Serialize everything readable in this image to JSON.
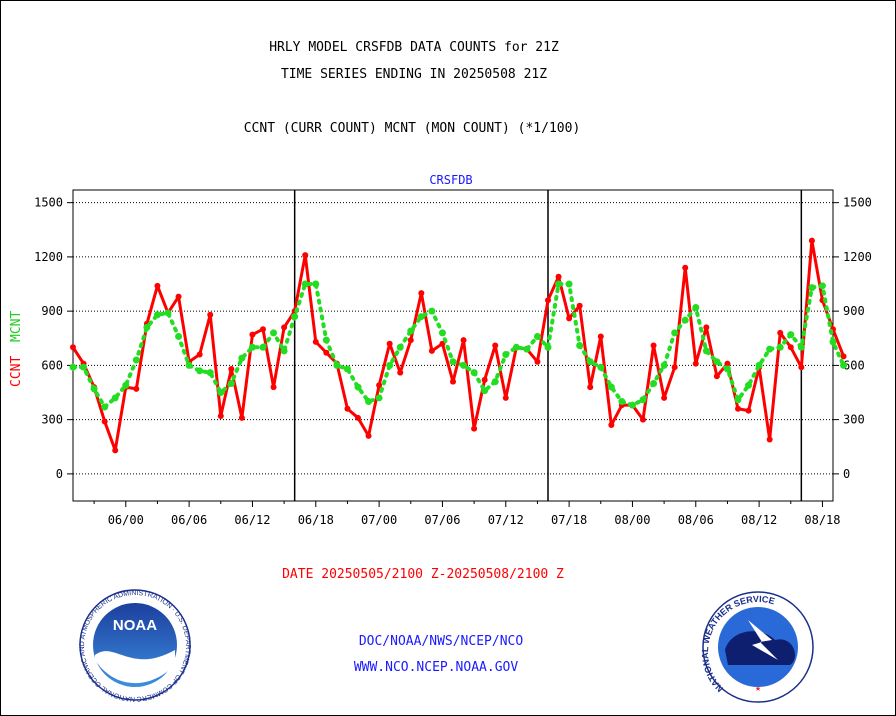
{
  "header": {
    "title_line1": "HRLY MODEL CRSFDB DATA COUNTS for 21Z",
    "title_line2": "TIME SERIES ENDING IN 20250508 21Z",
    "title_line3": "CCNT (CURR COUNT) MCNT (MON COUNT) (*1/100)"
  },
  "footer": {
    "date_range": "DATE 20250505/2100 Z-20250508/2100 Z",
    "link1": "DOC/NOAA/NWS/NCEP/NCO",
    "link2": "WWW.NCO.NCEP.NOAA.GOV"
  },
  "logos": {
    "noaa_text": "NOAA",
    "noaa_ring": "NATIONAL OCEANIC AND ATMOSPHERIC ADMINISTRATION · U.S. DEPARTMENT OF COMMERCE ·",
    "nws_ring": "NATIONAL WEATHER SERVICE"
  },
  "colors": {
    "ccnt": "#ff0000",
    "mcnt": "#22dd22",
    "accent_blue": "#1a1aff"
  },
  "chart_data": {
    "type": "line",
    "subtitle": "CRSFDB",
    "ylabel_ccnt": "CCNT",
    "ylabel_mcnt": "MCNT",
    "ylim": [
      -150,
      1570
    ],
    "yticks": [
      0,
      300,
      600,
      900,
      1200,
      1500
    ],
    "xlim": [
      0,
      72
    ],
    "x_ticks": [
      {
        "x": 5,
        "label": "06/00"
      },
      {
        "x": 11,
        "label": "06/06"
      },
      {
        "x": 17,
        "label": "06/12"
      },
      {
        "x": 23,
        "label": "06/18"
      },
      {
        "x": 29,
        "label": "07/00"
      },
      {
        "x": 35,
        "label": "07/06"
      },
      {
        "x": 41,
        "label": "07/12"
      },
      {
        "x": 47,
        "label": "07/18"
      },
      {
        "x": 53,
        "label": "08/00"
      },
      {
        "x": 59,
        "label": "08/06"
      },
      {
        "x": 65,
        "label": "08/12"
      },
      {
        "x": 71,
        "label": "08/18"
      }
    ],
    "vlines": [
      21,
      45,
      69
    ],
    "grid": true,
    "series": [
      {
        "name": "CCNT",
        "color": "#ff0000",
        "style": "solid",
        "values": [
          700,
          610,
          480,
          290,
          130,
          480,
          470,
          830,
          1040,
          890,
          980,
          620,
          660,
          880,
          320,
          580,
          310,
          770,
          800,
          480,
          810,
          900,
          1210,
          730,
          670,
          610,
          360,
          310,
          210,
          490,
          720,
          560,
          740,
          1000,
          680,
          720,
          510,
          740,
          250,
          520,
          710,
          420,
          700,
          690,
          620,
          960,
          1090,
          860,
          930,
          480,
          760,
          270,
          380,
          380,
          300,
          710,
          420,
          590,
          1140,
          610,
          810,
          540,
          610,
          360,
          350,
          590,
          190,
          780,
          700,
          590,
          1290,
          960,
          800,
          650
        ]
      },
      {
        "name": "MCNT",
        "color": "#22dd22",
        "style": "dotted",
        "values": [
          590,
          590,
          470,
          370,
          420,
          490,
          630,
          810,
          880,
          890,
          760,
          600,
          570,
          560,
          450,
          500,
          640,
          700,
          700,
          780,
          680,
          870,
          1050,
          1050,
          740,
          600,
          580,
          480,
          400,
          420,
          600,
          700,
          790,
          870,
          900,
          780,
          620,
          600,
          560,
          460,
          510,
          660,
          700,
          690,
          760,
          700,
          1050,
          1050,
          710,
          620,
          590,
          480,
          400,
          380,
          410,
          500,
          600,
          780,
          850,
          920,
          680,
          620,
          580,
          410,
          490,
          600,
          690,
          700,
          770,
          700,
          1030,
          1040,
          730,
          600
        ]
      }
    ]
  }
}
